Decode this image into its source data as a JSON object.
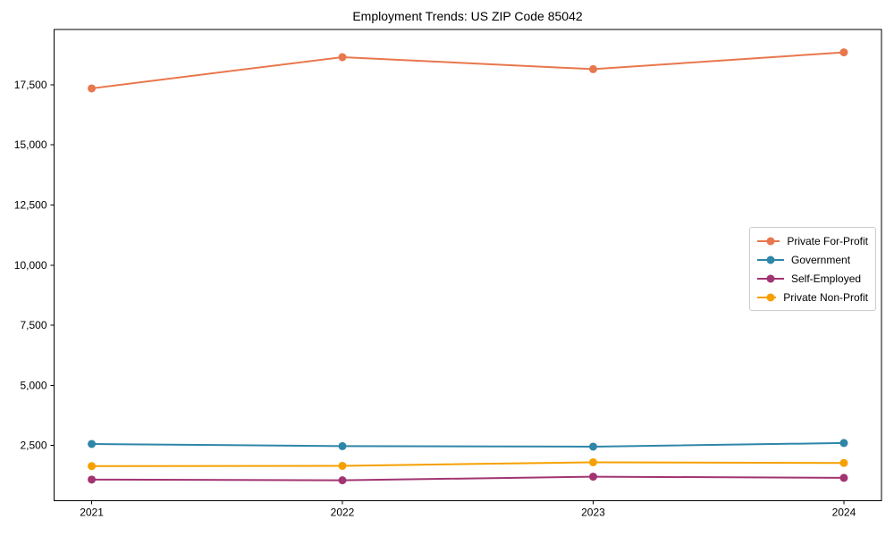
{
  "figure": {
    "background": "#ffffff",
    "axis_color": "#000000",
    "legend_border_color": "#cccccc",
    "legend_background": "#ffffff"
  },
  "chart_data": {
    "type": "line",
    "title": "Employment Trends: US ZIP Code 85042",
    "xlabel": "",
    "ylabel": "",
    "categories": [
      "2021",
      "2022",
      "2023",
      "2024"
    ],
    "series": [
      {
        "name": "Private For-Profit",
        "color": "#E8774D",
        "values": [
          17350,
          18650,
          18150,
          18850
        ]
      },
      {
        "name": "Government",
        "color": "#2E86A8",
        "values": [
          2560,
          2470,
          2450,
          2600
        ]
      },
      {
        "name": "Self-Employed",
        "color": "#A23472",
        "values": [
          1080,
          1050,
          1200,
          1150
        ]
      },
      {
        "name": "Private Non-Profit",
        "color": "#F5A000",
        "values": [
          1640,
          1650,
          1800,
          1770
        ]
      }
    ],
    "marker": "circle",
    "grid": false,
    "legend_position": "center-right",
    "xlim": [
      -0.15,
      3.15
    ],
    "ylim": [
      200,
      19800
    ],
    "yticks": [
      2500,
      5000,
      7500,
      10000,
      12500,
      15000,
      17500
    ],
    "ytick_labels": [
      "2,500",
      "5,000",
      "7,500",
      "10,000",
      "12,500",
      "15,000",
      "17,500"
    ]
  }
}
